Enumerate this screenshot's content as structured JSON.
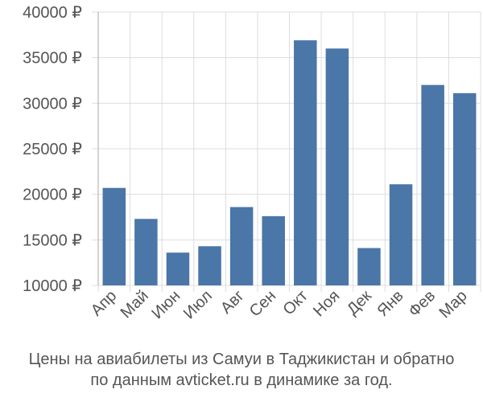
{
  "chart_data": {
    "type": "bar",
    "categories": [
      "Апр",
      "Май",
      "Июн",
      "Июл",
      "Авг",
      "Сен",
      "Окт",
      "Ноя",
      "Дек",
      "Янв",
      "Фев",
      "Мар"
    ],
    "values": [
      20700,
      17300,
      13600,
      14300,
      18600,
      17600,
      36900,
      36000,
      14100,
      21100,
      32000,
      31100
    ],
    "ylim": [
      10000,
      40000
    ],
    "yticks": [
      10000,
      15000,
      20000,
      25000,
      30000,
      35000,
      40000
    ],
    "ytick_labels": [
      "10000 ₽",
      "15000 ₽",
      "20000 ₽",
      "25000 ₽",
      "30000 ₽",
      "35000 ₽",
      "40000 ₽"
    ],
    "grid": true,
    "bar_color": "#4a76a8",
    "grid_color": "#dddddd",
    "axis_color": "#555555"
  },
  "caption": {
    "line1": "Цены на авиабилеты из Самуи в Таджикистан и обратно",
    "line2": "по данным avticket.ru в динамике за год."
  }
}
